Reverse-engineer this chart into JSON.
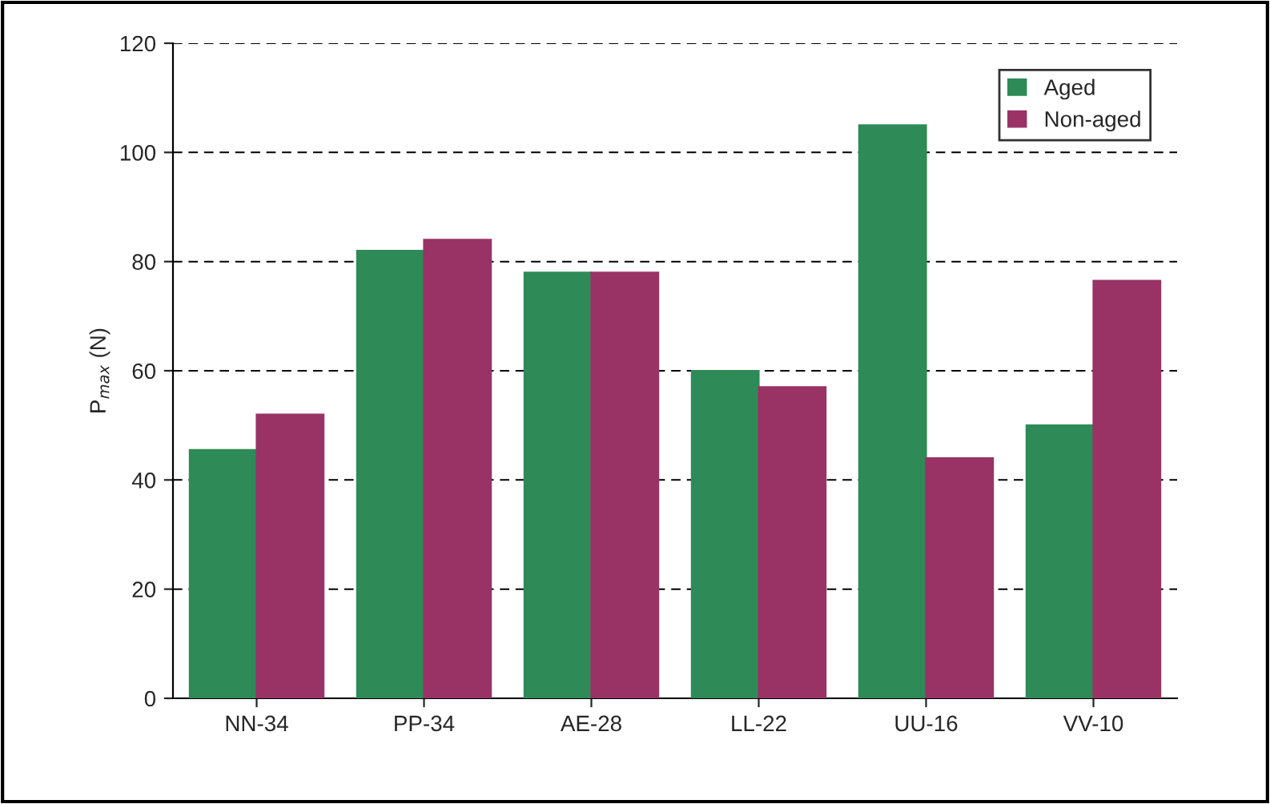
{
  "chart_data": {
    "type": "bar",
    "ylabel": "P$_{max}$ (N)",
    "categories": [
      "NN-34",
      "PP-34",
      "AE-28",
      "LL-22",
      "UU-16",
      "VV-10"
    ],
    "series": [
      {
        "name": "Aged",
        "color": "#2e8b57",
        "values": [
          45.5,
          82,
          78,
          60,
          105,
          50
        ]
      },
      {
        "name": "Non-aged",
        "color": "#993366",
        "values": [
          52,
          84,
          78,
          57,
          44,
          76.5
        ]
      }
    ],
    "ylim": [
      0,
      120
    ],
    "yticks": [
      0,
      20,
      40,
      60,
      80,
      100,
      120
    ],
    "grid": "y",
    "legend": "top right"
  }
}
